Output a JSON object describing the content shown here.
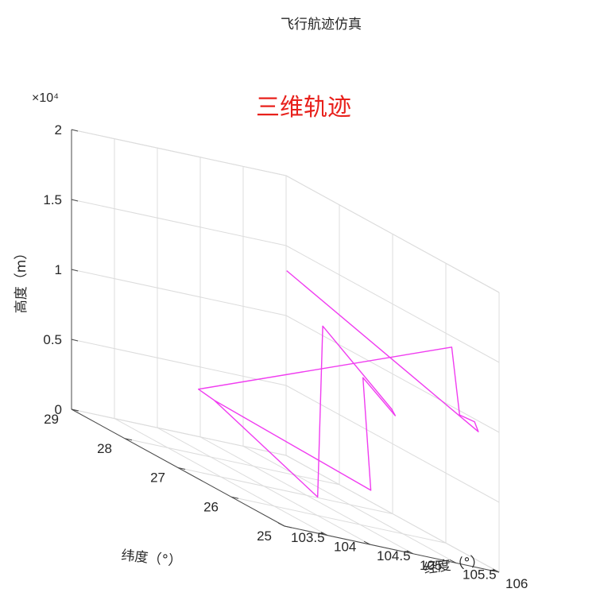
{
  "chart_data": {
    "type": "line3d",
    "title": "飞行航迹仿真",
    "annotation": "三维轨迹",
    "xlabel": "经度（°）",
    "ylabel": "纬度（°）",
    "zlabel": "高度（m）",
    "xlim": [
      103.5,
      106
    ],
    "ylim": [
      25,
      29
    ],
    "zlim": [
      0,
      20000
    ],
    "x_ticks": [
      "103.5",
      "104",
      "104.5",
      "105",
      "105.5",
      "106"
    ],
    "y_ticks": [
      "25",
      "26",
      "27",
      "28",
      "29"
    ],
    "z_ticks": [
      "0",
      "0.5",
      "1",
      "1.5",
      "2"
    ],
    "z_exponent": "×10⁴",
    "grid": true,
    "series": [
      {
        "color": "#f03cf0",
        "points": [
          {
            "x": 103.8,
            "y": 27.1,
            "z": 5800
          },
          {
            "x": 103.86,
            "y": 26.9,
            "z": 5500
          },
          {
            "x": 104.32,
            "y": 25.7,
            "z": 1700
          },
          {
            "x": 104.38,
            "y": 25.7,
            "z": 14000
          },
          {
            "x": 104.75,
            "y": 25.0,
            "z": 10000
          },
          {
            "x": 104.79,
            "y": 25.0,
            "z": 9600
          },
          {
            "x": 104.91,
            "y": 25.8,
            "z": 10800
          },
          {
            "x": 104.94,
            "y": 25.7,
            "z": 3000
          },
          {
            "x": 103.86,
            "y": 26.9,
            "z": 5500
          },
          {
            "x": 103.8,
            "y": 27.1,
            "z": 5800
          },
          {
            "x": 105.82,
            "y": 25.6,
            "z": 14600
          },
          {
            "x": 105.85,
            "y": 25.5,
            "z": 10000
          },
          {
            "x": 105.9,
            "y": 25.3,
            "z": 10000
          },
          {
            "x": 105.82,
            "y": 25.1,
            "z": 9600
          },
          {
            "x": 104.89,
            "y": 27.2,
            "z": 15500
          }
        ]
      }
    ]
  }
}
